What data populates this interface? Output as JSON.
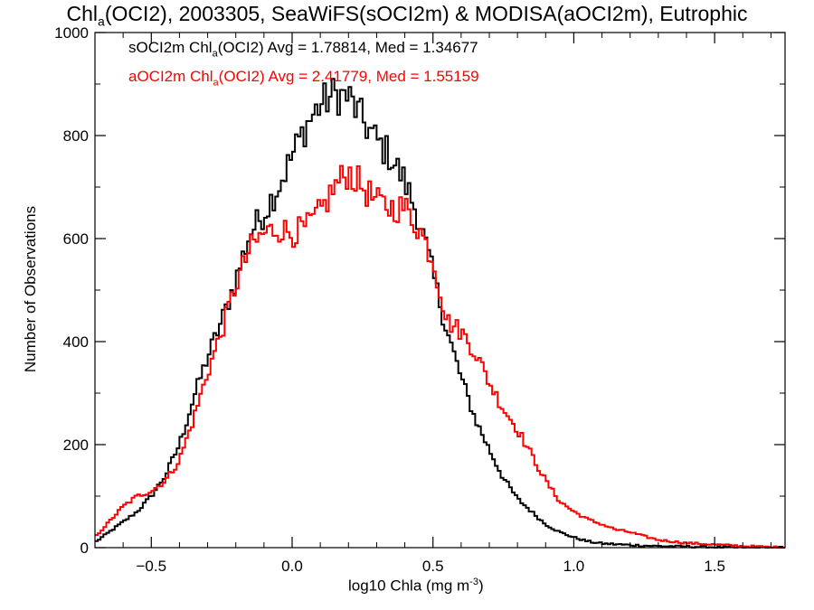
{
  "title": {
    "prefix": "Chl",
    "sub": "a",
    "rest": "(OCI2), 2003305, SeaWiFS(sOCI2m) & MODISA(aOCI2m), Eutrophic"
  },
  "legend": [
    {
      "prefix": "sOCI2m Chl",
      "sub": "a",
      "rest": "(OCI2) Avg = 1.78814, Med = 1.34677",
      "color": "#000000"
    },
    {
      "prefix": "aOCI2m Chl",
      "sub": "a",
      "rest": "(OCI2) Avg = 2.41779, Med = 1.55159",
      "color": "#ff0000"
    }
  ],
  "xlabel": {
    "prefix": "log10 Chla (mg m",
    "sup": "-3",
    "suffix": ")"
  },
  "ylabel": "Number of Observations",
  "chart_data": {
    "type": "line",
    "step": true,
    "xlim": [
      -0.7,
      1.75
    ],
    "ylim": [
      0,
      1000
    ],
    "x_ticks": [
      -0.5,
      0.0,
      0.5,
      1.0,
      1.5
    ],
    "x_tick_labels": [
      "−0.5",
      "0.0",
      "0.5",
      "1.0",
      "1.5"
    ],
    "y_ticks": [
      0,
      200,
      400,
      600,
      800,
      1000
    ],
    "y_tick_labels": [
      "0",
      "200",
      "400",
      "600",
      "800",
      "1000"
    ],
    "grid": false,
    "series": [
      {
        "color": "#000000",
        "points": [
          [
            -0.7,
            10
          ],
          [
            -0.65,
            30
          ],
          [
            -0.6,
            50
          ],
          [
            -0.55,
            70
          ],
          [
            -0.5,
            100
          ],
          [
            -0.45,
            140
          ],
          [
            -0.4,
            200
          ],
          [
            -0.35,
            290
          ],
          [
            -0.3,
            370
          ],
          [
            -0.25,
            440
          ],
          [
            -0.2,
            520
          ],
          [
            -0.15,
            610
          ],
          [
            -0.1,
            650
          ],
          [
            -0.05,
            700
          ],
          [
            0.0,
            760
          ],
          [
            0.05,
            820
          ],
          [
            0.1,
            860
          ],
          [
            0.15,
            880
          ],
          [
            0.2,
            875
          ],
          [
            0.25,
            830
          ],
          [
            0.3,
            790
          ],
          [
            0.35,
            760
          ],
          [
            0.4,
            710
          ],
          [
            0.45,
            640
          ],
          [
            0.5,
            530
          ],
          [
            0.55,
            420
          ],
          [
            0.6,
            330
          ],
          [
            0.65,
            250
          ],
          [
            0.7,
            190
          ],
          [
            0.75,
            135
          ],
          [
            0.8,
            95
          ],
          [
            0.85,
            70
          ],
          [
            0.9,
            45
          ],
          [
            0.95,
            30
          ],
          [
            1.0,
            20
          ],
          [
            1.05,
            12
          ],
          [
            1.1,
            8
          ],
          [
            1.2,
            5
          ],
          [
            1.3,
            3
          ],
          [
            1.4,
            2
          ],
          [
            1.5,
            1
          ],
          [
            1.6,
            0
          ],
          [
            1.75,
            0
          ]
        ]
      },
      {
        "color": "#ff0000",
        "points": [
          [
            -0.7,
            20
          ],
          [
            -0.65,
            50
          ],
          [
            -0.6,
            80
          ],
          [
            -0.55,
            100
          ],
          [
            -0.5,
            110
          ],
          [
            -0.45,
            130
          ],
          [
            -0.4,
            170
          ],
          [
            -0.35,
            250
          ],
          [
            -0.3,
            340
          ],
          [
            -0.25,
            420
          ],
          [
            -0.2,
            510
          ],
          [
            -0.15,
            580
          ],
          [
            -0.1,
            610
          ],
          [
            -0.05,
            620
          ],
          [
            0.0,
            610
          ],
          [
            0.05,
            620
          ],
          [
            0.1,
            650
          ],
          [
            0.15,
            700
          ],
          [
            0.2,
            730
          ],
          [
            0.25,
            700
          ],
          [
            0.3,
            670
          ],
          [
            0.35,
            660
          ],
          [
            0.4,
            660
          ],
          [
            0.45,
            620
          ],
          [
            0.5,
            560
          ],
          [
            0.55,
            440
          ],
          [
            0.6,
            420
          ],
          [
            0.65,
            380
          ],
          [
            0.7,
            320
          ],
          [
            0.75,
            270
          ],
          [
            0.8,
            230
          ],
          [
            0.85,
            180
          ],
          [
            0.9,
            130
          ],
          [
            0.95,
            90
          ],
          [
            1.0,
            70
          ],
          [
            1.05,
            55
          ],
          [
            1.1,
            45
          ],
          [
            1.15,
            35
          ],
          [
            1.2,
            30
          ],
          [
            1.25,
            22
          ],
          [
            1.3,
            15
          ],
          [
            1.4,
            9
          ],
          [
            1.5,
            6
          ],
          [
            1.6,
            3
          ],
          [
            1.75,
            0
          ]
        ]
      }
    ]
  }
}
